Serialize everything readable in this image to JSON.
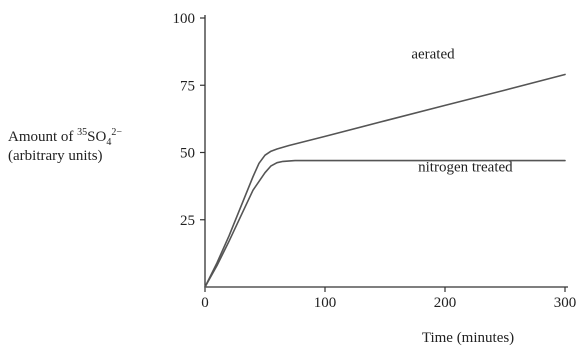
{
  "chart_data": {
    "type": "line",
    "title": "",
    "xlabel": "Time (minutes)",
    "ylabel": {
      "line1_prefix": "Amount of ",
      "isotope": "35",
      "species": "SO",
      "subscript": "4",
      "charge": "2−",
      "line2": "(arbitrary units)"
    },
    "xlim": [
      0,
      300
    ],
    "ylim": [
      0,
      100
    ],
    "xticks": [
      {
        "value": 0,
        "label": "0"
      },
      {
        "value": 100,
        "label": "100"
      },
      {
        "value": 200,
        "label": "200"
      },
      {
        "value": 300,
        "label": "300"
      }
    ],
    "yticks": [
      {
        "value": 25,
        "label": "25"
      },
      {
        "value": 50,
        "label": "50"
      },
      {
        "value": 75,
        "label": "75"
      },
      {
        "value": 100,
        "label": "100"
      }
    ],
    "grid": false,
    "series": [
      {
        "name": "aerated",
        "color": "#555555",
        "points": [
          [
            0,
            0
          ],
          [
            10,
            9
          ],
          [
            20,
            19
          ],
          [
            30,
            30
          ],
          [
            40,
            41
          ],
          [
            45,
            46
          ],
          [
            50,
            49
          ],
          [
            55,
            50.5
          ],
          [
            60,
            51.3
          ],
          [
            70,
            52.6
          ],
          [
            100,
            56
          ],
          [
            150,
            61.8
          ],
          [
            200,
            67.5
          ],
          [
            250,
            73.2
          ],
          [
            300,
            79
          ]
        ]
      },
      {
        "name": "nitrogen treated",
        "color": "#555555",
        "points": [
          [
            0,
            0
          ],
          [
            10,
            8
          ],
          [
            20,
            17
          ],
          [
            30,
            26.5
          ],
          [
            40,
            36
          ],
          [
            50,
            42.5
          ],
          [
            55,
            45
          ],
          [
            60,
            46.2
          ],
          [
            65,
            46.7
          ],
          [
            75,
            47
          ],
          [
            100,
            47
          ],
          [
            200,
            47
          ],
          [
            300,
            47
          ]
        ]
      }
    ],
    "series_labels": [
      {
        "text": "aerated",
        "x": 190,
        "y": 85
      },
      {
        "text": "nitrogen treated",
        "x": 217,
        "y": 43
      }
    ]
  }
}
